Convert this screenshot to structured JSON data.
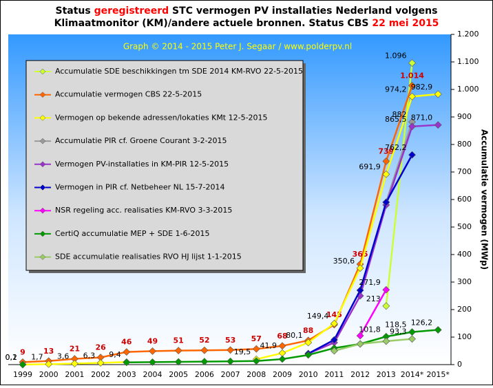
{
  "chart_data": {
    "type": "line",
    "title_parts": [
      {
        "text": "Status ",
        "color": "#000000"
      },
      {
        "text": "geregistreerd",
        "color": "#ff0000"
      },
      {
        "text": " STC vermogen PV installaties  Nederland  volgens",
        "color": "#000000"
      },
      {
        "text": "Klimaatmonitor (KM)/andere actuele bronnen. Status CBS ",
        "color": "#000000"
      },
      {
        "text": "22 mei 2015",
        "color": "#ff0000"
      }
    ],
    "subtitle": "Graph  © 2014 - 2015 Peter J. Segaar / www.polderpv.nl",
    "y_label": "Accumulatie vermogen (MWp)",
    "categories": [
      "1999",
      "2000",
      "2001",
      "2002",
      "2003",
      "2004",
      "2005",
      "2006",
      "2007",
      "2008",
      "2009",
      "2010",
      "2011",
      "2012",
      "2013",
      "2014*",
      "2015*"
    ],
    "ylim": [
      0,
      1200
    ],
    "yticks": [
      0,
      100,
      200,
      300,
      400,
      500,
      600,
      700,
      800,
      900,
      {
        "value": 1000,
        "label": "1.000"
      },
      {
        "value": 1100,
        "label": "1.100"
      },
      {
        "value": 1200,
        "label": "1.200"
      }
    ],
    "series": [
      {
        "name": "Accumulatie SDE beschikkingen tm SDE 2014 KM-RVO 22-5-2015",
        "color": "#ccff33",
        "values": [
          null,
          null,
          null,
          null,
          null,
          null,
          null,
          null,
          null,
          null,
          null,
          null,
          null,
          null,
          213,
          1096,
          null
        ],
        "value_labels": [
          null,
          null,
          null,
          null,
          null,
          null,
          null,
          null,
          null,
          null,
          null,
          null,
          null,
          null,
          "213",
          "1.096",
          null
        ]
      },
      {
        "name": "Accumulatie vermogen CBS 22-5-2015",
        "color": "#ff6600",
        "values": [
          9,
          13,
          21,
          26,
          46,
          49,
          51,
          52,
          53,
          57,
          68,
          88,
          145,
          365,
          739,
          1014,
          null
        ],
        "value_labels": [
          "9",
          "13",
          "21",
          "26",
          "46",
          "49",
          "51",
          "52",
          "53",
          "57",
          "68",
          "88",
          "145",
          "365",
          "739",
          "1.014",
          null
        ]
      },
      {
        "name": "Vermogen op bekende adressen/lokaties KMt 12-5-2015",
        "color": "#ffff00",
        "values": [
          0.2,
          1.7,
          3.6,
          6.3,
          9.4,
          null,
          null,
          null,
          null,
          19.5,
          41.9,
          80.1,
          149.4,
          350.6,
          691.9,
          974.2,
          982.9
        ],
        "value_labels": [
          "0,2",
          "1,7",
          "3,6",
          "6,3",
          "9,4",
          null,
          null,
          null,
          null,
          "19,5",
          "41,9",
          "80,1",
          "149,4",
          "350,6",
          "691,9",
          "974,2",
          "982,9"
        ]
      },
      {
        "name": "Accumulatie PIR cf. Groene Courant 3-2-2015",
        "color": "#999999",
        "values": [
          null,
          null,
          null,
          null,
          null,
          null,
          null,
          null,
          null,
          null,
          null,
          null,
          null,
          null,
          590,
          882,
          null
        ],
        "value_labels": [
          null,
          null,
          null,
          null,
          null,
          null,
          null,
          null,
          null,
          null,
          null,
          null,
          null,
          null,
          null,
          "882",
          null
        ]
      },
      {
        "name": "Vermogen PV-installaties in KM-PIR 12-5-2015",
        "color": "#9933cc",
        "values": [
          null,
          null,
          null,
          null,
          null,
          null,
          null,
          null,
          null,
          null,
          null,
          40,
          80,
          250,
          580,
          865.5,
          871.0
        ],
        "value_labels": [
          null,
          null,
          null,
          null,
          null,
          null,
          null,
          null,
          null,
          null,
          null,
          null,
          null,
          null,
          null,
          "865,5",
          "871,0"
        ]
      },
      {
        "name": "Vermogen in PIR cf. Netbeheer NL 15-7-2014",
        "color": "#0000cc",
        "values": [
          null,
          null,
          null,
          null,
          null,
          null,
          null,
          null,
          null,
          null,
          null,
          40,
          90,
          270,
          590,
          762.2,
          null
        ],
        "value_labels": [
          null,
          null,
          null,
          null,
          null,
          null,
          null,
          null,
          null,
          null,
          null,
          null,
          null,
          null,
          null,
          "762,2",
          null
        ]
      },
      {
        "name": "NSR regeling acc. realisaties KM-RVO 3-3-2015",
        "color": "#ff00ff",
        "values": [
          null,
          null,
          null,
          null,
          null,
          null,
          null,
          null,
          null,
          null,
          null,
          null,
          null,
          105,
          271.9,
          null,
          null
        ],
        "value_labels": [
          null,
          null,
          null,
          null,
          null,
          null,
          null,
          null,
          null,
          null,
          null,
          null,
          null,
          null,
          "271,9",
          null,
          null
        ]
      },
      {
        "name": "CertiQ accumulatie MEP + SDE 1-6-2015",
        "color": "#009900",
        "values": [
          0.1,
          null,
          null,
          null,
          8,
          9,
          10,
          11,
          12,
          13,
          20,
          35,
          60,
          75,
          101.8,
          118.5,
          126.2
        ],
        "value_labels": [
          "0,1",
          null,
          null,
          null,
          null,
          null,
          null,
          null,
          null,
          null,
          null,
          null,
          null,
          null,
          "101,8",
          "118,5",
          "126,2"
        ]
      },
      {
        "name": "SDE accumulatie realisaties RVO HJ lijst 1-1-2015",
        "color": "#99cc66",
        "values": [
          null,
          null,
          null,
          null,
          null,
          null,
          null,
          null,
          null,
          null,
          null,
          null,
          50,
          75,
          85,
          93.3,
          null
        ],
        "value_labels": [
          null,
          null,
          null,
          null,
          null,
          null,
          null,
          null,
          null,
          null,
          null,
          null,
          null,
          null,
          null,
          "93,3",
          null
        ]
      }
    ]
  }
}
